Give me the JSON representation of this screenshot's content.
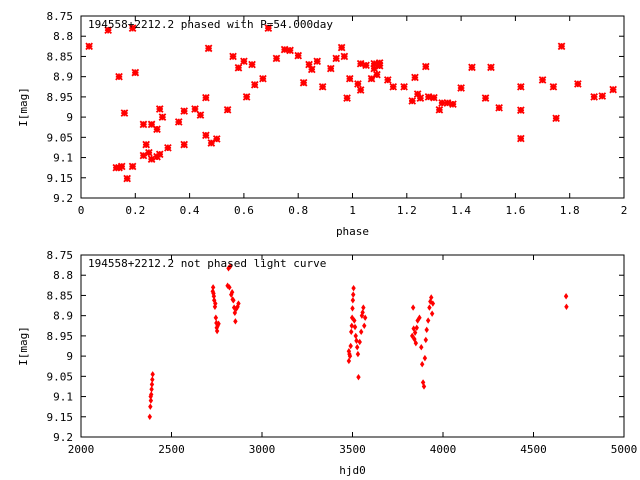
{
  "chart_data": [
    {
      "type": "scatter",
      "title": "194558+2212.2 phased with P=54.000day",
      "xlabel": "phase",
      "ylabel": "I[mag]",
      "xlim": [
        0,
        2
      ],
      "ylim": [
        9.2,
        8.75
      ],
      "y_inverted": true,
      "marker": "star",
      "color": "#ff0000",
      "x_ticks": [
        "0",
        "0.2",
        "0.4",
        "0.6",
        "0.8",
        "1",
        "1.2",
        "1.4",
        "1.6",
        "1.8",
        "2"
      ],
      "y_ticks": [
        "8.75",
        "8.8",
        "8.85",
        "8.9",
        "8.95",
        "9",
        "9.05",
        "9.1",
        "9.15",
        "9.2"
      ],
      "points": [
        [
          0.03,
          8.825
        ],
        [
          0.1,
          8.785
        ],
        [
          0.19,
          8.78
        ],
        [
          0.13,
          9.125
        ],
        [
          0.14,
          9.125
        ],
        [
          0.15,
          9.122
        ],
        [
          0.17,
          9.152
        ],
        [
          0.19,
          9.122
        ],
        [
          0.14,
          8.9
        ],
        [
          0.2,
          8.89
        ],
        [
          0.16,
          8.99
        ],
        [
          0.23,
          9.095
        ],
        [
          0.24,
          9.068
        ],
        [
          0.25,
          9.088
        ],
        [
          0.26,
          9.104
        ],
        [
          0.28,
          9.098
        ],
        [
          0.28,
          9.03
        ],
        [
          0.29,
          8.98
        ],
        [
          0.3,
          9.0
        ],
        [
          0.29,
          9.092
        ],
        [
          0.32,
          9.076
        ],
        [
          0.23,
          9.018
        ],
        [
          0.26,
          9.018
        ],
        [
          0.36,
          9.012
        ],
        [
          0.38,
          9.068
        ],
        [
          0.38,
          8.985
        ],
        [
          0.42,
          8.98
        ],
        [
          0.44,
          8.995
        ],
        [
          0.46,
          8.952
        ],
        [
          0.46,
          9.045
        ],
        [
          0.48,
          9.064
        ],
        [
          0.47,
          8.83
        ],
        [
          0.5,
          9.054
        ],
        [
          0.54,
          8.982
        ],
        [
          0.56,
          8.85
        ],
        [
          0.58,
          8.878
        ],
        [
          0.6,
          8.862
        ],
        [
          0.61,
          8.95
        ],
        [
          0.63,
          8.87
        ],
        [
          0.64,
          8.92
        ],
        [
          0.67,
          8.905
        ],
        [
          0.69,
          8.78
        ],
        [
          0.72,
          8.855
        ],
        [
          0.75,
          8.833
        ],
        [
          0.77,
          8.835
        ],
        [
          0.8,
          8.848
        ],
        [
          0.82,
          8.915
        ],
        [
          0.84,
          8.87
        ],
        [
          0.85,
          8.882
        ],
        [
          0.87,
          8.862
        ],
        [
          0.89,
          8.925
        ],
        [
          0.92,
          8.88
        ],
        [
          0.94,
          8.855
        ],
        [
          0.96,
          8.828
        ],
        [
          0.97,
          8.85
        ],
        [
          0.98,
          8.953
        ],
        [
          0.99,
          8.905
        ],
        [
          1.02,
          8.918
        ],
        [
          1.03,
          8.933
        ],
        [
          1.03,
          8.868
        ],
        [
          1.05,
          8.872
        ],
        [
          1.07,
          8.905
        ],
        [
          1.08,
          8.88
        ],
        [
          1.08,
          8.868
        ],
        [
          1.09,
          8.895
        ],
        [
          1.1,
          8.873
        ],
        [
          1.1,
          8.866
        ],
        [
          1.13,
          8.908
        ],
        [
          1.15,
          8.925
        ],
        [
          1.19,
          8.925
        ],
        [
          1.22,
          8.96
        ],
        [
          1.23,
          8.902
        ],
        [
          1.24,
          8.943
        ],
        [
          1.25,
          8.953
        ],
        [
          1.27,
          8.875
        ],
        [
          1.28,
          8.95
        ],
        [
          1.3,
          8.952
        ],
        [
          1.32,
          8.982
        ],
        [
          1.33,
          8.965
        ],
        [
          1.35,
          8.965
        ],
        [
          1.37,
          8.968
        ],
        [
          1.4,
          8.928
        ],
        [
          1.44,
          8.877
        ],
        [
          1.49,
          8.953
        ],
        [
          1.51,
          8.877
        ],
        [
          1.54,
          8.977
        ],
        [
          1.62,
          8.925
        ],
        [
          1.62,
          8.983
        ],
        [
          1.62,
          9.053
        ],
        [
          1.7,
          8.908
        ],
        [
          1.74,
          8.925
        ],
        [
          1.75,
          9.003
        ],
        [
          1.77,
          8.825
        ],
        [
          1.83,
          8.918
        ],
        [
          1.89,
          8.95
        ],
        [
          1.92,
          8.948
        ],
        [
          1.96,
          8.932
        ]
      ]
    },
    {
      "type": "scatter",
      "title": "194558+2212.2 not phased light curve",
      "xlabel": "hjd0",
      "ylabel": "I[mag]",
      "xlim": [
        2000,
        5000
      ],
      "ylim": [
        9.2,
        8.75
      ],
      "y_inverted": true,
      "marker": "diamond",
      "color": "#ff0000",
      "x_ticks": [
        "2000",
        "2500",
        "3000",
        "3500",
        "4000",
        "4500",
        "5000"
      ],
      "y_ticks": [
        "8.75",
        "8.8",
        "8.85",
        "8.9",
        "8.95",
        "9",
        "9.05",
        "9.1",
        "9.15",
        "9.2"
      ],
      "points": [
        [
          2380,
          9.15
        ],
        [
          2383,
          9.125
        ],
        [
          2386,
          9.11
        ],
        [
          2388,
          9.095
        ],
        [
          2390,
          9.082
        ],
        [
          2392,
          9.07
        ],
        [
          2394,
          9.058
        ],
        [
          2396,
          9.045
        ],
        [
          2385,
          9.1
        ],
        [
          2730,
          8.83
        ],
        [
          2732,
          8.845
        ],
        [
          2734,
          8.852
        ],
        [
          2736,
          8.862
        ],
        [
          2740,
          8.878
        ],
        [
          2742,
          8.87
        ],
        [
          2745,
          8.905
        ],
        [
          2748,
          8.918
        ],
        [
          2750,
          8.93
        ],
        [
          2752,
          8.938
        ],
        [
          2755,
          8.925
        ],
        [
          2760,
          8.92
        ],
        [
          2728,
          8.84
        ],
        [
          2810,
          8.826
        ],
        [
          2815,
          8.783
        ],
        [
          2820,
          8.83
        ],
        [
          2825,
          8.778
        ],
        [
          2830,
          8.848
        ],
        [
          2835,
          8.842
        ],
        [
          2838,
          8.86
        ],
        [
          2842,
          8.862
        ],
        [
          2846,
          8.88
        ],
        [
          2850,
          8.893
        ],
        [
          2853,
          8.914
        ],
        [
          2858,
          8.883
        ],
        [
          2865,
          8.878
        ],
        [
          2870,
          8.87
        ],
        [
          3480,
          8.988
        ],
        [
          3483,
          8.995
        ],
        [
          3486,
          9.0
        ],
        [
          3490,
          8.975
        ],
        [
          3493,
          8.94
        ],
        [
          3496,
          8.925
        ],
        [
          3498,
          8.905
        ],
        [
          3500,
          8.882
        ],
        [
          3502,
          8.862
        ],
        [
          3504,
          8.848
        ],
        [
          3506,
          8.832
        ],
        [
          3510,
          8.912
        ],
        [
          3514,
          8.928
        ],
        [
          3518,
          8.95
        ],
        [
          3522,
          8.962
        ],
        [
          3526,
          8.978
        ],
        [
          3530,
          8.995
        ],
        [
          3533,
          9.052
        ],
        [
          3540,
          8.965
        ],
        [
          3548,
          8.94
        ],
        [
          3552,
          8.9
        ],
        [
          3556,
          8.892
        ],
        [
          3560,
          8.88
        ],
        [
          3565,
          8.925
        ],
        [
          3570,
          8.905
        ],
        [
          3480,
          9.012
        ],
        [
          3830,
          8.95
        ],
        [
          3835,
          8.88
        ],
        [
          3838,
          8.932
        ],
        [
          3842,
          8.958
        ],
        [
          3846,
          8.942
        ],
        [
          3850,
          8.968
        ],
        [
          3855,
          8.93
        ],
        [
          3860,
          8.912
        ],
        [
          3870,
          8.905
        ],
        [
          3880,
          8.978
        ],
        [
          3885,
          9.02
        ],
        [
          3890,
          9.065
        ],
        [
          3895,
          9.075
        ],
        [
          3900,
          9.005
        ],
        [
          3905,
          8.96
        ],
        [
          3910,
          8.935
        ],
        [
          3918,
          8.912
        ],
        [
          3925,
          8.88
        ],
        [
          3930,
          8.865
        ],
        [
          3935,
          8.855
        ],
        [
          3940,
          8.895
        ],
        [
          3944,
          8.87
        ],
        [
          4680,
          8.852
        ],
        [
          4682,
          8.878
        ]
      ]
    }
  ]
}
